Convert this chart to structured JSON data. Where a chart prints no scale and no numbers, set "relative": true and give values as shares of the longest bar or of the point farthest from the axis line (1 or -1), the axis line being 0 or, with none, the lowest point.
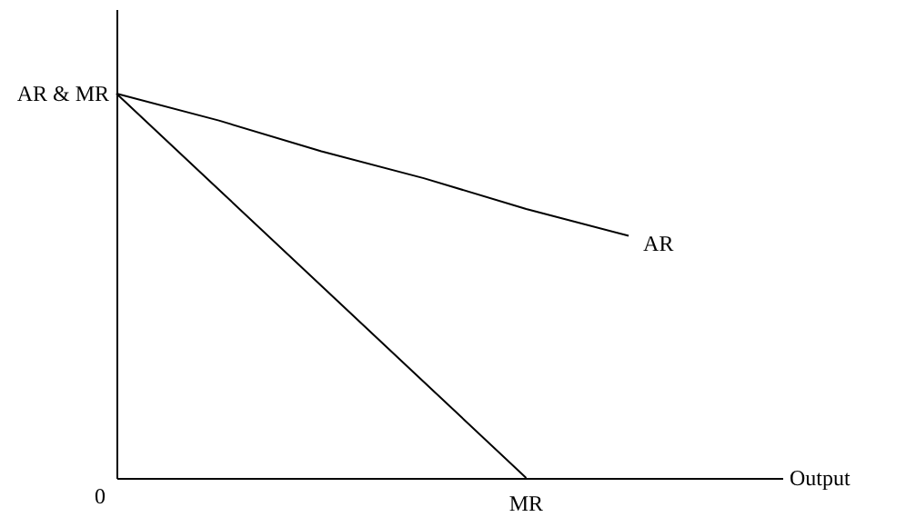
{
  "chart_data": {
    "type": "line",
    "relative": true,
    "ylabel": "AR & MR",
    "categories": [
      null,
      null,
      null,
      null,
      null,
      null
    ],
    "series": [
      {
        "name": "AR",
        "color": "#000000",
        "values": [
          1,
          0.93,
          0.85,
          0.78,
          0.7,
          0.63
        ]
      },
      {
        "name": "MR",
        "color": "#000000",
        "values": [
          1,
          0.75,
          0.5,
          0.25,
          0,
          null
        ]
      }
    ],
    "annotations": [
      "0",
      "Output"
    ],
    "grid": false
  }
}
